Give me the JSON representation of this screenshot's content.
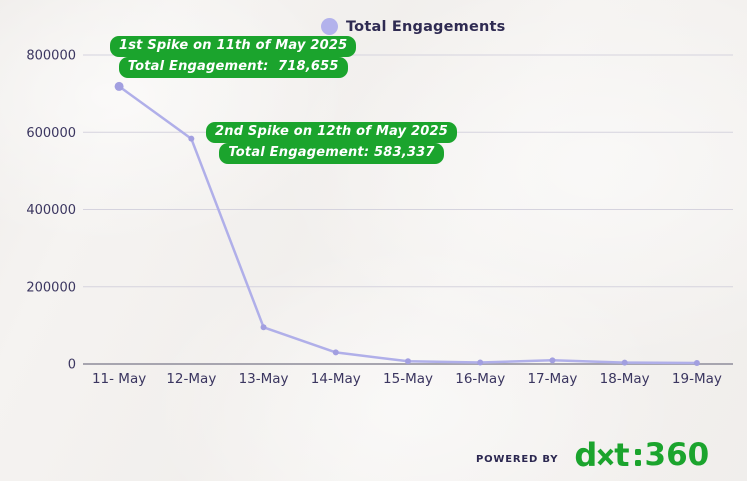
{
  "legend": {
    "label": "Total Engagements"
  },
  "annotations": [
    {
      "line1": "1st Spike on 11th of May 2025",
      "line2": "Total Engagement:  718,655"
    },
    {
      "line1": "2nd Spike on 12th of May 2025",
      "line2": "Total Engagement: 583,337"
    }
  ],
  "footer": {
    "powered_by": "POWERED BY",
    "brand_d": "d",
    "brand_t": "t",
    "brand_num": "360"
  },
  "colors": {
    "background": "#f5f3f1",
    "grid": "#d5d3de",
    "axis": "#a7a5af",
    "line": "#b0afe9",
    "point": "#a29fe0",
    "annotation_bg": "#1ba42d",
    "annotation_text": "#ffffff",
    "tick_text": "#3b3660",
    "legend_dot": "#b3b2ec",
    "legend_text": "#2f2b52",
    "brand_green": "#1ba42d",
    "powered_by_text": "#2b2750"
  },
  "chart_data": {
    "type": "line",
    "title": "",
    "xlabel": "",
    "ylabel": "",
    "categories": [
      "11- May",
      "12-May",
      "13-May",
      "14-May",
      "15-May",
      "16-May",
      "17-May",
      "18-May",
      "19-May"
    ],
    "series": [
      {
        "name": "Total Engagements",
        "values": [
          718655,
          583337,
          95000,
          30000,
          7000,
          4000,
          9500,
          3500,
          2500
        ]
      }
    ],
    "yticks": [
      0,
      200000,
      400000,
      600000,
      800000
    ],
    "ylim": [
      0,
      800000
    ],
    "grid": "horizontal",
    "legend_position": "top-center",
    "annotated_points": [
      {
        "category": "11- May",
        "value": 718655
      },
      {
        "category": "12-May",
        "value": 583337
      }
    ]
  }
}
